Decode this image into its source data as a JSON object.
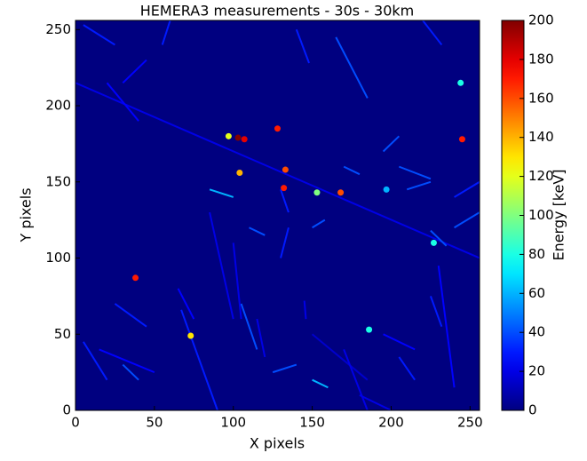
{
  "chart_data": {
    "type": "heatmap",
    "title": "HEMERA3 measurements - 30s - 30km",
    "xlabel": "X pixels",
    "ylabel": "Y pixels",
    "colorbar_label": "Energy [keV]",
    "colormap": "jet",
    "background_value": 0,
    "xlim": [
      0,
      256
    ],
    "ylim": [
      0,
      256
    ],
    "clim": [
      0,
      200
    ],
    "xticks": [
      0,
      50,
      100,
      150,
      200,
      250
    ],
    "yticks": [
      0,
      50,
      100,
      150,
      200,
      250
    ],
    "cticks": [
      0,
      20,
      40,
      60,
      80,
      100,
      120,
      140,
      160,
      180,
      200
    ],
    "tracks": [
      {
        "x": [
          0,
          256
        ],
        "y": [
          215,
          100
        ],
        "value": 20
      },
      {
        "x": [
          165,
          185
        ],
        "y": [
          245,
          205
        ],
        "value": 40
      },
      {
        "x": [
          140,
          148
        ],
        "y": [
          250,
          228
        ],
        "value": 30
      },
      {
        "x": [
          220,
          232
        ],
        "y": [
          256,
          240
        ],
        "value": 30
      },
      {
        "x": [
          60,
          55
        ],
        "y": [
          256,
          240
        ],
        "value": 30
      },
      {
        "x": [
          5,
          25
        ],
        "y": [
          253,
          240
        ],
        "value": 30
      },
      {
        "x": [
          30,
          45
        ],
        "y": [
          215,
          230
        ],
        "value": 25
      },
      {
        "x": [
          20,
          40
        ],
        "y": [
          215,
          190
        ],
        "value": 25
      },
      {
        "x": [
          205,
          195
        ],
        "y": [
          180,
          170
        ],
        "value": 40
      },
      {
        "x": [
          170,
          180
        ],
        "y": [
          160,
          155
        ],
        "value": 40
      },
      {
        "x": [
          205,
          225
        ],
        "y": [
          160,
          152
        ],
        "value": 40
      },
      {
        "x": [
          210,
          225
        ],
        "y": [
          145,
          150
        ],
        "value": 40
      },
      {
        "x": [
          240,
          256
        ],
        "y": [
          120,
          130
        ],
        "value": 40
      },
      {
        "x": [
          225,
          235
        ],
        "y": [
          118,
          108
        ],
        "value": 40
      },
      {
        "x": [
          85,
          100
        ],
        "y": [
          145,
          140
        ],
        "value": 60
      },
      {
        "x": [
          110,
          120
        ],
        "y": [
          120,
          115
        ],
        "value": 40
      },
      {
        "x": [
          65,
          75
        ],
        "y": [
          80,
          60
        ],
        "value": 25
      },
      {
        "x": [
          67,
          90
        ],
        "y": [
          66,
          0
        ],
        "value": 30
      },
      {
        "x": [
          85,
          100
        ],
        "y": [
          130,
          60
        ],
        "value": 20
      },
      {
        "x": [
          105,
          115
        ],
        "y": [
          70,
          40
        ],
        "value": 40
      },
      {
        "x": [
          100,
          105
        ],
        "y": [
          110,
          60
        ],
        "value": 20
      },
      {
        "x": [
          130,
          135
        ],
        "y": [
          100,
          120
        ],
        "value": 30
      },
      {
        "x": [
          150,
          158
        ],
        "y": [
          120,
          125
        ],
        "value": 40
      },
      {
        "x": [
          150,
          185
        ],
        "y": [
          50,
          20
        ],
        "value": 15
      },
      {
        "x": [
          180,
          200
        ],
        "y": [
          10,
          0
        ],
        "value": 20
      },
      {
        "x": [
          230,
          240
        ],
        "y": [
          95,
          15
        ],
        "value": 25
      },
      {
        "x": [
          170,
          185
        ],
        "y": [
          40,
          0
        ],
        "value": 20
      },
      {
        "x": [
          225,
          232
        ],
        "y": [
          75,
          55
        ],
        "value": 30
      },
      {
        "x": [
          205,
          215
        ],
        "y": [
          35,
          20
        ],
        "value": 30
      },
      {
        "x": [
          5,
          20
        ],
        "y": [
          45,
          20
        ],
        "value": 30
      },
      {
        "x": [
          15,
          50
        ],
        "y": [
          40,
          25
        ],
        "value": 25
      },
      {
        "x": [
          25,
          45
        ],
        "y": [
          70,
          55
        ],
        "value": 30
      },
      {
        "x": [
          150,
          160
        ],
        "y": [
          20,
          15
        ],
        "value": 60
      },
      {
        "x": [
          125,
          140
        ],
        "y": [
          25,
          30
        ],
        "value": 40
      },
      {
        "x": [
          30,
          40
        ],
        "y": [
          30,
          20
        ],
        "value": 40
      },
      {
        "x": [
          145,
          146
        ],
        "y": [
          72,
          60
        ],
        "value": 20
      },
      {
        "x": [
          115,
          120
        ],
        "y": [
          60,
          35
        ],
        "value": 20
      },
      {
        "x": [
          240,
          256
        ],
        "y": [
          140,
          150
        ],
        "value": 30
      },
      {
        "x": [
          195,
          215
        ],
        "y": [
          50,
          40
        ],
        "value": 25
      },
      {
        "x": [
          135,
          130
        ],
        "y": [
          130,
          145
        ],
        "value": 30
      }
    ],
    "spots": [
      {
        "x": 103,
        "y": 179,
        "value": 200
      },
      {
        "x": 97,
        "y": 180,
        "value": 120
      },
      {
        "x": 107,
        "y": 178,
        "value": 180
      },
      {
        "x": 245,
        "y": 178,
        "value": 170
      },
      {
        "x": 38,
        "y": 87,
        "value": 170
      },
      {
        "x": 73,
        "y": 49,
        "value": 130
      },
      {
        "x": 133,
        "y": 158,
        "value": 160
      },
      {
        "x": 132,
        "y": 146,
        "value": 170
      },
      {
        "x": 168,
        "y": 143,
        "value": 160
      },
      {
        "x": 153,
        "y": 143,
        "value": 100
      },
      {
        "x": 197,
        "y": 145,
        "value": 60
      },
      {
        "x": 244,
        "y": 215,
        "value": 80
      },
      {
        "x": 128,
        "y": 185,
        "value": 170
      },
      {
        "x": 104,
        "y": 156,
        "value": 140
      },
      {
        "x": 227,
        "y": 110,
        "value": 80
      },
      {
        "x": 186,
        "y": 53,
        "value": 80
      }
    ]
  }
}
